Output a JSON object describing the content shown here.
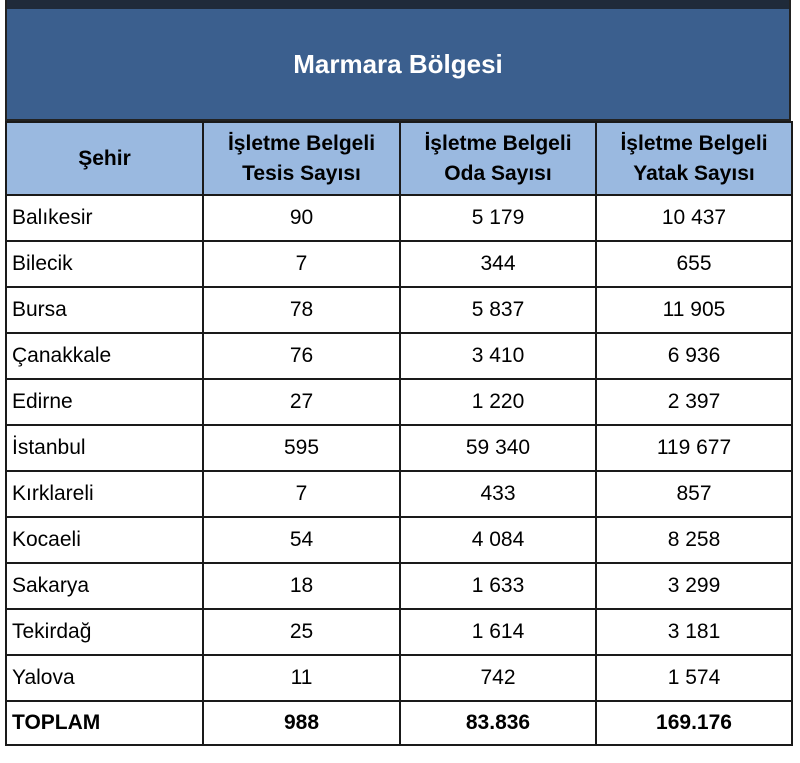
{
  "title": "Marmara Bölgesi",
  "headers": {
    "city": "Şehir",
    "facilities_line1": "İşletme Belgeli",
    "facilities_line2": "Tesis Sayısı",
    "rooms_line1": "İşletme Belgeli",
    "rooms_line2": "Oda Sayısı",
    "beds_line1": "İşletme Belgeli",
    "beds_line2": "Yatak Sayısı"
  },
  "rows": [
    {
      "city": "Balıkesir",
      "facilities": "90",
      "rooms": "5 179",
      "beds": "10 437"
    },
    {
      "city": "Bilecik",
      "facilities": "7",
      "rooms": "344",
      "beds": "655"
    },
    {
      "city": "Bursa",
      "facilities": "78",
      "rooms": "5 837",
      "beds": "11 905"
    },
    {
      "city": "Çanakkale",
      "facilities": "76",
      "rooms": "3 410",
      "beds": "6 936"
    },
    {
      "city": "Edirne",
      "facilities": "27",
      "rooms": "1 220",
      "beds": "2 397"
    },
    {
      "city": "İstanbul",
      "facilities": "595",
      "rooms": "59 340",
      "beds": "119 677"
    },
    {
      "city": "Kırklareli",
      "facilities": "7",
      "rooms": "433",
      "beds": "857"
    },
    {
      "city": "Kocaeli",
      "facilities": "54",
      "rooms": "4 084",
      "beds": "8 258"
    },
    {
      "city": "Sakarya",
      "facilities": "18",
      "rooms": "1 633",
      "beds": "3 299"
    },
    {
      "city": "Tekirdağ",
      "facilities": "25",
      "rooms": "1 614",
      "beds": "3 181"
    },
    {
      "city": "Yalova",
      "facilities": "11",
      "rooms": "742",
      "beds": "1 574"
    }
  ],
  "total": {
    "label": "TOPLAM",
    "facilities": "988",
    "rooms": "83.836",
    "beds": "169.176"
  },
  "colors": {
    "title_bg": "#3b5f8e",
    "header_bg": "#9ab9e0",
    "title_text": "#ffffff"
  }
}
